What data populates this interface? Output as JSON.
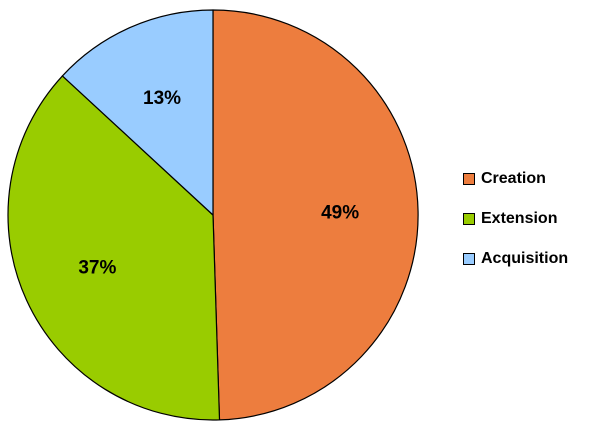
{
  "chart_data": {
    "type": "pie",
    "title": "",
    "categories": [
      "Creation",
      "Extension",
      "Acquisition"
    ],
    "values": [
      49,
      37,
      13
    ],
    "labels": [
      "49%",
      "37%",
      "13%"
    ],
    "colors": [
      "#ED7D3E",
      "#99CC00",
      "#99CCFF"
    ],
    "start_angle_deg": 0,
    "direction": "clockwise",
    "legend_position": "right"
  },
  "legend": {
    "items": [
      {
        "label": "Creation",
        "color": "#ED7D3E"
      },
      {
        "label": "Extension",
        "color": "#99CC00"
      },
      {
        "label": "Acquisition",
        "color": "#99CCFF"
      }
    ]
  }
}
